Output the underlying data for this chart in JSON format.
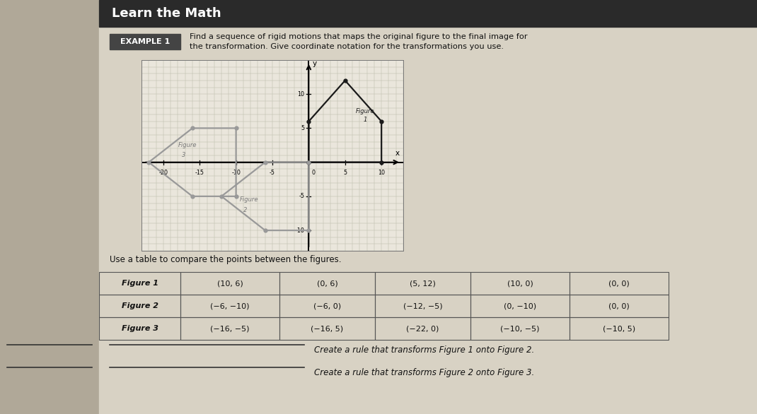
{
  "title": "Learn the Math",
  "example_label": "EXAMPLE 1",
  "example_text_line1": "Find a sequence of rigid motions that maps the original figure to the final image for",
  "example_text_line2": "the transformation. Give coordinate notation for the transformations you use.",
  "page_bg": "#cec8ba",
  "left_bg": "#b8b2a4",
  "content_bg": "#d8d2c4",
  "header_bg": "#2a2a2a",
  "example_box_bg": "#444444",
  "grid_bg": "#eae6dc",
  "grid_line_color": "#bbbbaa",
  "figure1_ordered": [
    [
      0,
      0
    ],
    [
      10,
      0
    ],
    [
      10,
      6
    ],
    [
      5,
      12
    ],
    [
      0,
      6
    ]
  ],
  "figure2_ordered": [
    [
      0,
      0
    ],
    [
      0,
      -10
    ],
    [
      -6,
      -10
    ],
    [
      -12,
      -5
    ],
    [
      -6,
      0
    ]
  ],
  "figure3_ordered": [
    [
      -22,
      0
    ],
    [
      -16,
      5
    ],
    [
      -10,
      5
    ],
    [
      -10,
      -5
    ],
    [
      -16,
      -5
    ]
  ],
  "fig1_color": "#1a1a1a",
  "fig2_color": "#999999",
  "fig3_color": "#999999",
  "xmin": -23,
  "xmax": 13,
  "ymin": -13,
  "ymax": 15,
  "xticks": [
    -20,
    -15,
    -10,
    -5,
    5,
    10
  ],
  "yticks": [
    -10,
    -5,
    5,
    10
  ],
  "table_rows": [
    [
      "Figure 1",
      "(10, 6)",
      "(0, 6)",
      "(5, 12)",
      "(10, 0)",
      "(0, 0)"
    ],
    [
      "Figure 2",
      "(−6, −10)",
      "(−6, 0)",
      "(−12, −5)",
      "(0, −10)",
      "(0, 0)"
    ],
    [
      "Figure 3",
      "(−16, −5)",
      "(−16, 5)",
      "(−22, 0)",
      "(−10, −5)",
      "(−10, 5)"
    ]
  ],
  "use_table_text": "Use a table to compare the points between the figures.",
  "rule1_text": "Create a rule that transforms Figure 1 onto Figure 2.",
  "rule2_text": "Create a rule that transforms Figure 2 onto Figure 3."
}
